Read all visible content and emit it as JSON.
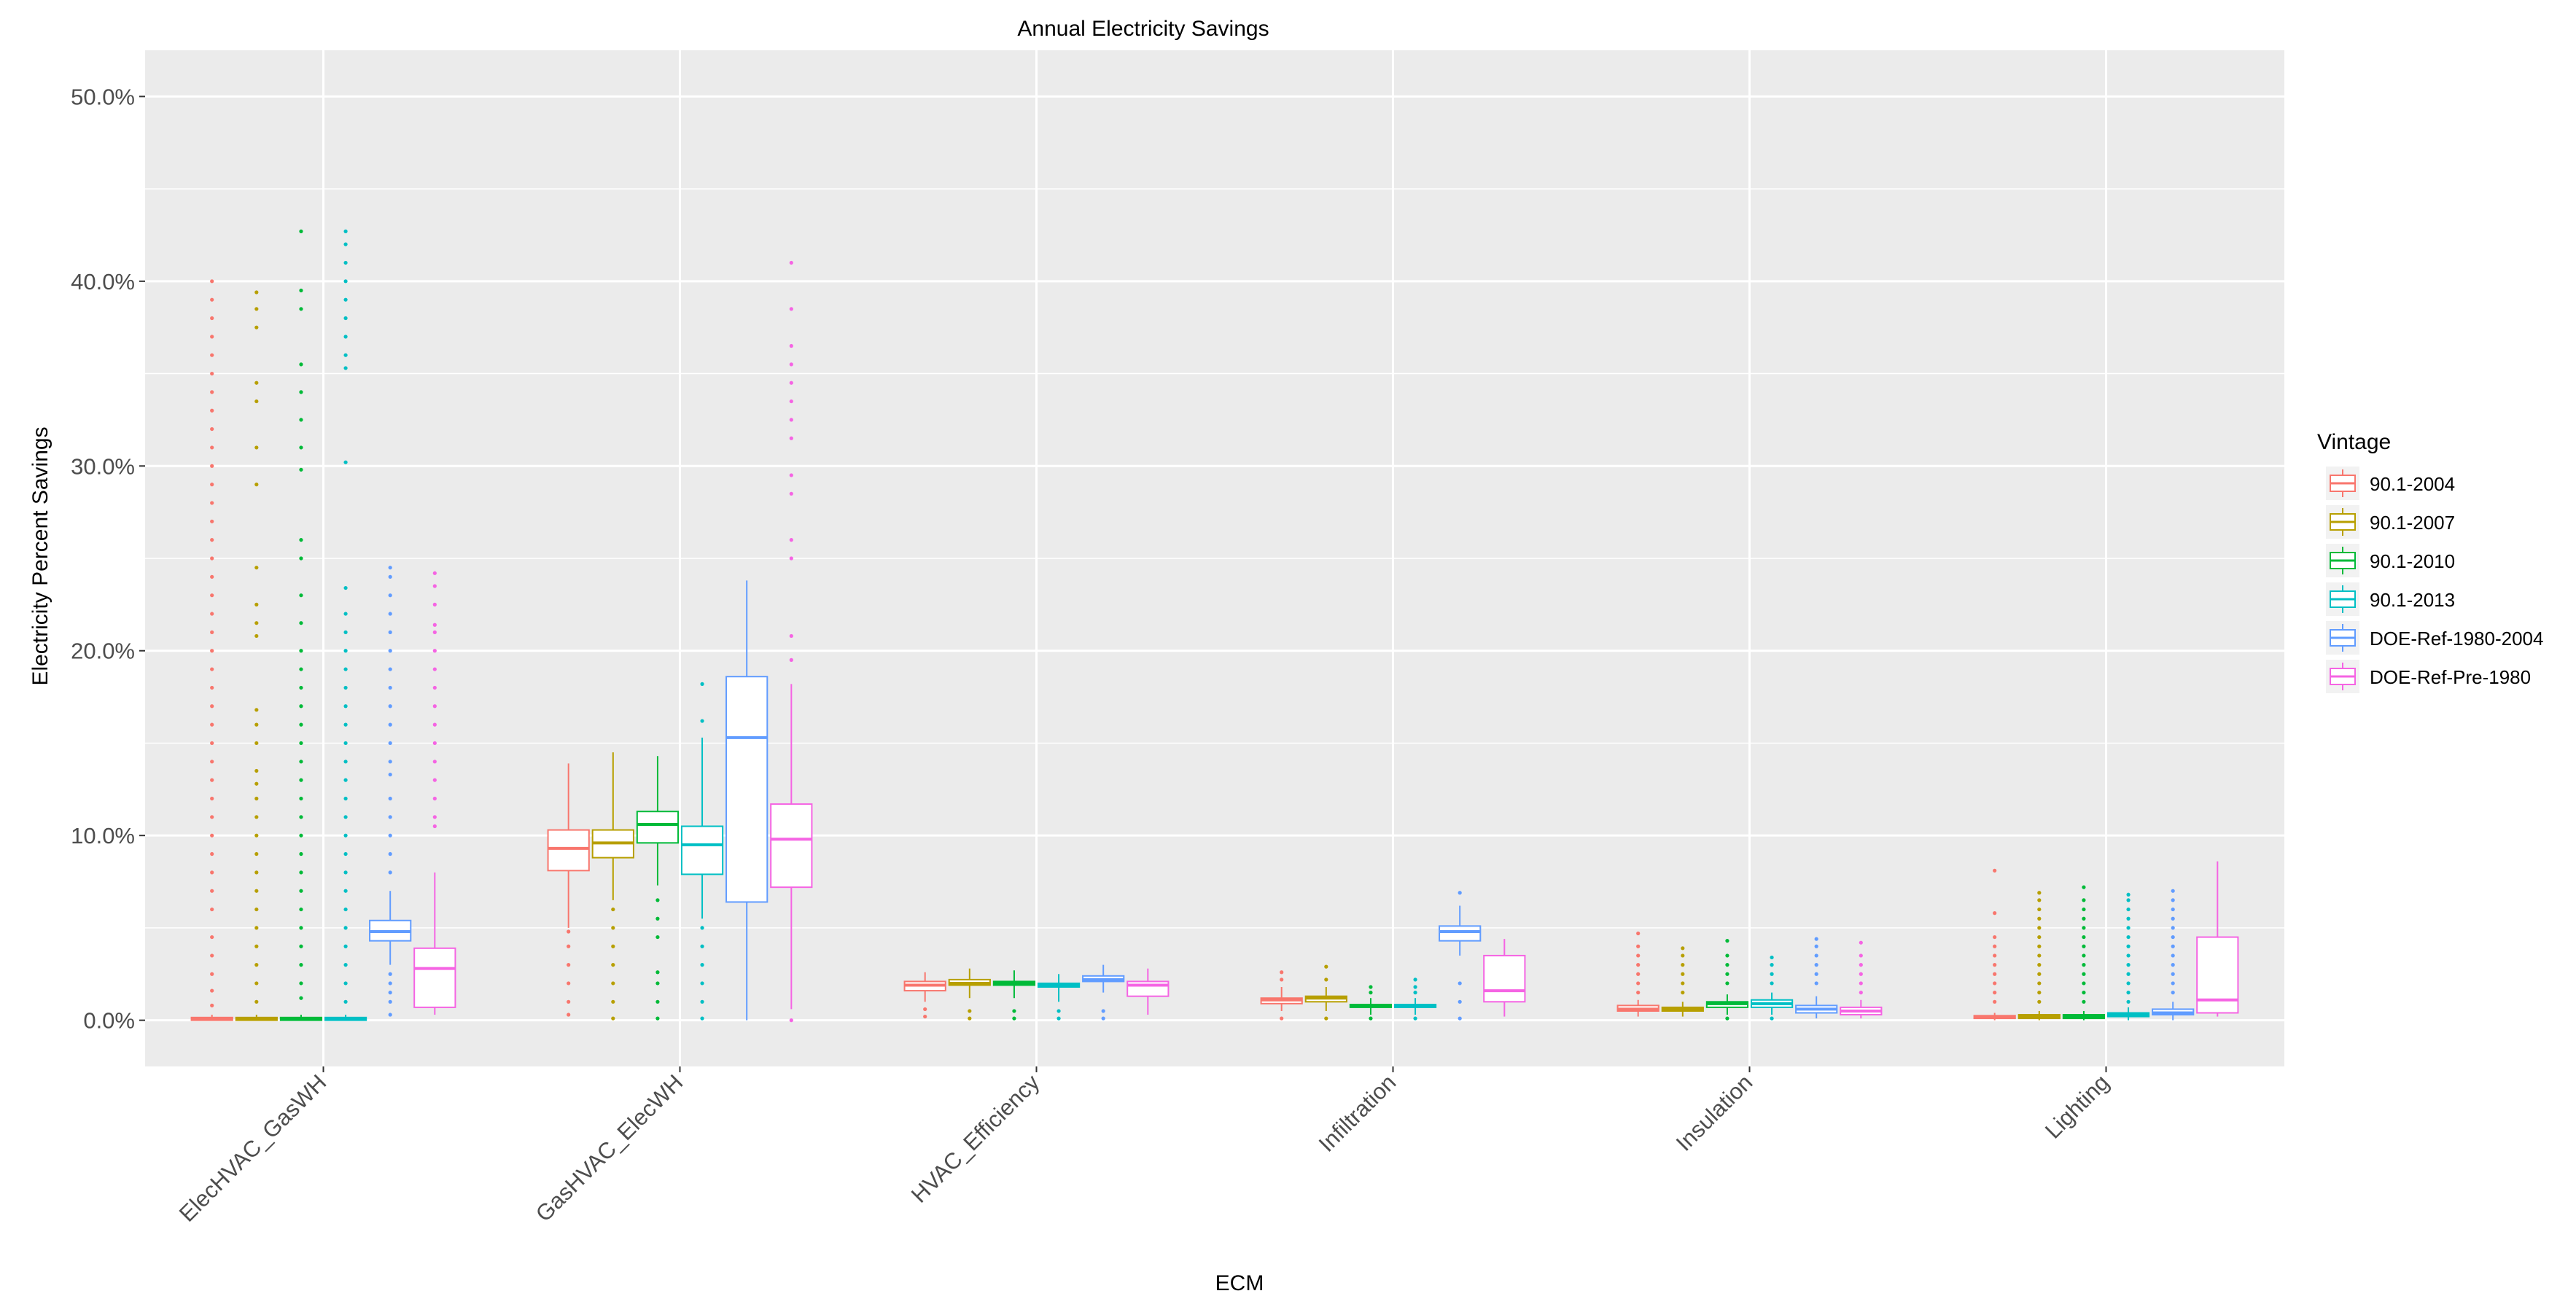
{
  "chart_data": {
    "type": "boxplot",
    "title": "Annual Electricity Savings",
    "xlabel": "ECM",
    "ylabel": "Electricity Percent Savings",
    "ylim": [
      -2.5,
      52.5
    ],
    "yticks": [
      0,
      10,
      20,
      30,
      40,
      50
    ],
    "ytick_labels": [
      "0.0%",
      "10.0%",
      "20.0%",
      "30.0%",
      "40.0%",
      "50.0%"
    ],
    "grid": true,
    "legend": {
      "title": "Vintage",
      "position": "right"
    },
    "categories": [
      "ElecHVAC_GasWH",
      "GasHVAC_ElecWH",
      "HVAC_Efficiency",
      "Infiltration",
      "Insulation",
      "Lighting"
    ],
    "series": [
      {
        "name": "90.1-2004",
        "color": "#F8766D",
        "boxes": [
          {
            "q1": 0.0,
            "median": 0.05,
            "q3": 0.15,
            "whisker_low": 0.0,
            "whisker_high": 0.3,
            "outliers": [
              0.8,
              1.6,
              2.5,
              3.5,
              4.5,
              6.0,
              7.0,
              8.0,
              9.0,
              10.0,
              11.0,
              12.0,
              13.0,
              14.0,
              15.0,
              16.0,
              17.0,
              18.0,
              19.0,
              20.0,
              21.0,
              22.0,
              23.0,
              24.0,
              25.0,
              26.0,
              27.0,
              28.0,
              29.0,
              30.0,
              31.0,
              32.0,
              33.0,
              34.0,
              35.0,
              36.0,
              37.0,
              38.0,
              39.0,
              40.0
            ]
          },
          {
            "q1": 8.1,
            "median": 9.3,
            "q3": 10.3,
            "whisker_low": 5.0,
            "whisker_high": 13.9,
            "outliers": [
              0.3,
              1.0,
              2.0,
              3.0,
              4.0,
              4.8
            ]
          },
          {
            "q1": 1.6,
            "median": 1.9,
            "q3": 2.1,
            "whisker_low": 1.0,
            "whisker_high": 2.6,
            "outliers": [
              0.2,
              0.6
            ]
          },
          {
            "q1": 0.9,
            "median": 1.1,
            "q3": 1.2,
            "whisker_low": 0.5,
            "whisker_high": 1.8,
            "outliers": [
              0.1,
              2.2,
              2.6
            ]
          },
          {
            "q1": 0.5,
            "median": 0.6,
            "q3": 0.8,
            "whisker_low": 0.2,
            "whisker_high": 1.1,
            "outliers": [
              1.5,
              2.0,
              2.5,
              3.0,
              3.5,
              4.0,
              4.7
            ]
          },
          {
            "q1": 0.1,
            "median": 0.15,
            "q3": 0.25,
            "whisker_low": 0.0,
            "whisker_high": 0.4,
            "outliers": [
              1.0,
              1.5,
              2.0,
              2.5,
              3.0,
              3.5,
              4.0,
              4.5,
              5.8,
              8.1
            ]
          }
        ]
      },
      {
        "name": "90.1-2007",
        "color": "#B79F00",
        "boxes": [
          {
            "q1": 0.0,
            "median": 0.05,
            "q3": 0.15,
            "whisker_low": 0.0,
            "whisker_high": 0.3,
            "outliers": [
              1.0,
              2.0,
              3.0,
              4.0,
              5.0,
              6.0,
              7.0,
              8.0,
              9.0,
              10.0,
              11.0,
              12.0,
              12.8,
              13.5,
              15.0,
              16.0,
              16.8,
              20.8,
              21.5,
              22.5,
              24.5,
              29.0,
              31.0,
              33.5,
              34.5,
              37.5,
              38.5,
              39.4
            ]
          },
          {
            "q1": 8.8,
            "median": 9.6,
            "q3": 10.3,
            "whisker_low": 6.5,
            "whisker_high": 14.5,
            "outliers": [
              0.1,
              1.0,
              2.0,
              3.0,
              4.0,
              5.0,
              6.0
            ]
          },
          {
            "q1": 1.9,
            "median": 2.0,
            "q3": 2.2,
            "whisker_low": 1.2,
            "whisker_high": 2.8,
            "outliers": [
              0.1,
              0.5
            ]
          },
          {
            "q1": 1.0,
            "median": 1.2,
            "q3": 1.3,
            "whisker_low": 0.5,
            "whisker_high": 1.8,
            "outliers": [
              0.1,
              2.2,
              2.9
            ]
          },
          {
            "q1": 0.5,
            "median": 0.6,
            "q3": 0.7,
            "whisker_low": 0.2,
            "whisker_high": 1.0,
            "outliers": [
              1.5,
              2.0,
              2.5,
              3.0,
              3.5,
              3.9
            ]
          },
          {
            "q1": 0.1,
            "median": 0.2,
            "q3": 0.3,
            "whisker_low": 0.0,
            "whisker_high": 0.5,
            "outliers": [
              1.0,
              1.5,
              2.0,
              2.5,
              3.0,
              3.5,
              4.0,
              4.5,
              5.0,
              5.5,
              6.0,
              6.5,
              6.9
            ]
          }
        ]
      },
      {
        "name": "90.1-2010",
        "color": "#00BA38",
        "boxes": [
          {
            "q1": 0.0,
            "median": 0.05,
            "q3": 0.15,
            "whisker_low": 0.0,
            "whisker_high": 0.3,
            "outliers": [
              1.2,
              2.0,
              3.0,
              4.0,
              5.0,
              6.0,
              7.0,
              8.0,
              9.0,
              10.0,
              11.0,
              12.0,
              13.0,
              14.0,
              15.0,
              16.0,
              17.0,
              18.0,
              19.0,
              20.0,
              21.5,
              23.0,
              25.0,
              26.0,
              29.8,
              31.0,
              32.5,
              34.0,
              35.5,
              38.5,
              39.5,
              42.7
            ]
          },
          {
            "q1": 9.6,
            "median": 10.6,
            "q3": 11.3,
            "whisker_low": 7.3,
            "whisker_high": 14.3,
            "outliers": [
              0.1,
              1.0,
              2.0,
              2.6,
              4.5,
              5.5,
              6.5
            ]
          },
          {
            "q1": 1.9,
            "median": 2.0,
            "q3": 2.1,
            "whisker_low": 1.2,
            "whisker_high": 2.7,
            "outliers": [
              0.1,
              0.5
            ]
          },
          {
            "q1": 0.7,
            "median": 0.8,
            "q3": 0.85,
            "whisker_low": 0.3,
            "whisker_high": 1.2,
            "outliers": [
              0.1,
              1.5,
              1.8
            ]
          },
          {
            "q1": 0.7,
            "median": 0.9,
            "q3": 1.0,
            "whisker_low": 0.3,
            "whisker_high": 1.4,
            "outliers": [
              0.1,
              2.0,
              2.5,
              3.0,
              3.5,
              4.3
            ]
          },
          {
            "q1": 0.1,
            "median": 0.2,
            "q3": 0.3,
            "whisker_low": 0.0,
            "whisker_high": 0.5,
            "outliers": [
              1.0,
              1.5,
              2.0,
              2.5,
              3.0,
              3.5,
              4.0,
              4.5,
              5.0,
              5.5,
              6.0,
              6.5,
              7.2
            ]
          }
        ]
      },
      {
        "name": "90.1-2013",
        "color": "#00BFC4",
        "boxes": [
          {
            "q1": 0.0,
            "median": 0.05,
            "q3": 0.15,
            "whisker_low": 0.0,
            "whisker_high": 0.3,
            "outliers": [
              1.0,
              2.0,
              3.0,
              4.0,
              5.0,
              6.0,
              7.0,
              8.0,
              9.0,
              10.0,
              11.0,
              12.0,
              13.0,
              14.0,
              15.0,
              16.0,
              17.0,
              18.0,
              19.0,
              20.0,
              21.0,
              22.0,
              23.4,
              30.2,
              35.3,
              36.0,
              37.0,
              38.0,
              39.0,
              40.0,
              41.0,
              42.0,
              42.7
            ]
          },
          {
            "q1": 7.9,
            "median": 9.5,
            "q3": 10.5,
            "whisker_low": 5.5,
            "whisker_high": 15.3,
            "outliers": [
              0.1,
              1.0,
              2.0,
              3.0,
              4.0,
              5.0,
              16.2,
              18.2
            ]
          },
          {
            "q1": 1.8,
            "median": 1.9,
            "q3": 2.0,
            "whisker_low": 1.0,
            "whisker_high": 2.5,
            "outliers": [
              0.1,
              0.5
            ]
          },
          {
            "q1": 0.7,
            "median": 0.8,
            "q3": 0.85,
            "whisker_low": 0.3,
            "whisker_high": 1.2,
            "outliers": [
              0.1,
              1.5,
              1.8,
              2.2
            ]
          },
          {
            "q1": 0.7,
            "median": 0.9,
            "q3": 1.1,
            "whisker_low": 0.3,
            "whisker_high": 1.5,
            "outliers": [
              0.1,
              2.0,
              2.5,
              3.0,
              3.4
            ]
          },
          {
            "q1": 0.2,
            "median": 0.3,
            "q3": 0.4,
            "whisker_low": 0.0,
            "whisker_high": 0.7,
            "outliers": [
              1.0,
              1.5,
              2.0,
              2.5,
              3.0,
              3.5,
              4.0,
              4.5,
              5.0,
              5.5,
              6.0,
              6.5,
              6.8
            ]
          }
        ]
      },
      {
        "name": "DOE-Ref-1980-2004",
        "color": "#619CFF",
        "boxes": [
          {
            "q1": 4.3,
            "median": 4.8,
            "q3": 5.4,
            "whisker_low": 3.0,
            "whisker_high": 7.0,
            "outliers": [
              0.3,
              1.0,
              1.5,
              2.0,
              2.5,
              8.0,
              9.0,
              10.0,
              11.0,
              12.0,
              13.3,
              14.0,
              15.0,
              16.0,
              17.0,
              18.0,
              19.0,
              20.0,
              21.0,
              22.0,
              23.0,
              24.0,
              24.5
            ]
          },
          {
            "q1": 6.4,
            "median": 15.3,
            "q3": 18.6,
            "whisker_low": 0.0,
            "whisker_high": 23.8,
            "outliers": []
          },
          {
            "q1": 2.1,
            "median": 2.2,
            "q3": 2.4,
            "whisker_low": 1.5,
            "whisker_high": 3.0,
            "outliers": [
              0.1,
              0.5
            ]
          },
          {
            "q1": 4.3,
            "median": 4.8,
            "q3": 5.1,
            "whisker_low": 3.5,
            "whisker_high": 6.2,
            "outliers": [
              0.1,
              1.0,
              2.0,
              6.9
            ]
          },
          {
            "q1": 0.4,
            "median": 0.6,
            "q3": 0.8,
            "whisker_low": 0.1,
            "whisker_high": 1.3,
            "outliers": [
              2.0,
              2.5,
              3.0,
              3.5,
              4.0,
              4.4
            ]
          },
          {
            "q1": 0.3,
            "median": 0.4,
            "q3": 0.6,
            "whisker_low": 0.0,
            "whisker_high": 1.0,
            "outliers": [
              1.5,
              2.0,
              2.5,
              3.0,
              3.5,
              4.0,
              4.5,
              5.0,
              5.5,
              6.0,
              6.5,
              7.0
            ]
          }
        ]
      },
      {
        "name": "DOE-Ref-Pre-1980",
        "color": "#F564E3",
        "boxes": [
          {
            "q1": 0.7,
            "median": 2.8,
            "q3": 3.9,
            "whisker_low": 0.3,
            "whisker_high": 8.0,
            "outliers": [
              10.5,
              11.0,
              12.0,
              13.0,
              14.0,
              15.0,
              16.0,
              17.0,
              18.0,
              19.0,
              20.0,
              21.0,
              21.4,
              22.5,
              23.5,
              24.2
            ]
          },
          {
            "q1": 7.2,
            "median": 9.8,
            "q3": 11.7,
            "whisker_low": 0.6,
            "whisker_high": 18.2,
            "outliers": [
              0.0,
              19.5,
              20.8,
              25.0,
              26.0,
              28.5,
              29.5,
              31.5,
              32.5,
              33.5,
              34.5,
              35.5,
              36.5,
              38.5,
              41.0
            ]
          },
          {
            "q1": 1.3,
            "median": 1.9,
            "q3": 2.1,
            "whisker_low": 0.3,
            "whisker_high": 2.8,
            "outliers": []
          },
          {
            "q1": 1.0,
            "median": 1.6,
            "q3": 3.5,
            "whisker_low": 0.2,
            "whisker_high": 4.4,
            "outliers": []
          },
          {
            "q1": 0.3,
            "median": 0.5,
            "q3": 0.7,
            "whisker_low": 0.1,
            "whisker_high": 1.1,
            "outliers": [
              1.5,
              2.0,
              2.5,
              3.0,
              3.5,
              4.2
            ]
          },
          {
            "q1": 0.4,
            "median": 1.1,
            "q3": 4.5,
            "whisker_low": 0.2,
            "whisker_high": 8.6,
            "outliers": []
          }
        ]
      }
    ]
  }
}
